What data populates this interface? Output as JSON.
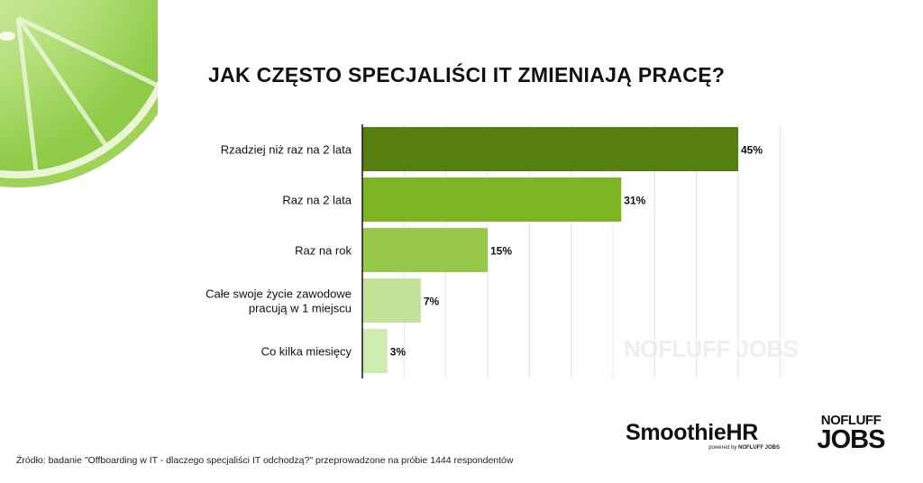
{
  "title": "JAK CZĘSTO SPECJALIŚCI IT ZMIENIAJĄ PRACĘ?",
  "source_note": "Źródło: badanie \"Offboarding w IT - dlaczego specjaliści IT odchodzą?\" przeprowadzone na próbie 1444 respondentów",
  "branding": {
    "smoothie_name": "SmoothieHR",
    "powered_by": "powered by",
    "powered_brand": "NOFLUFF JOBS",
    "logo_line1": "NOFLUFF",
    "logo_line2": "JOBS",
    "watermark": "NOFLUFF JOBS"
  },
  "colors": {
    "bar_1": "#567f10",
    "bar_2": "#7fb424",
    "bar_3": "#97c84a",
    "bar_4": "#c2e29a",
    "bar_5": "#d0ebb2",
    "lime": "#a8d96a",
    "grid": "#e3e3e3"
  },
  "chart_data": {
    "type": "bar",
    "orientation": "horizontal",
    "title": "JAK CZĘSTO SPECJALIŚCI IT ZMIENIAJĄ PRACĘ?",
    "categories": [
      [
        "Rzadziej niż raz na 2 lata"
      ],
      [
        "Raz na 2 lata"
      ],
      [
        "Raz na rok"
      ],
      [
        "Całe swoje życie zawodowe",
        "pracują w 1 miejscu"
      ],
      [
        "Co kilka miesięcy"
      ]
    ],
    "values": [
      45,
      31,
      15,
      7,
      3
    ],
    "value_labels": [
      "45%",
      "31%",
      "15%",
      "7%",
      "3%"
    ],
    "xlim": [
      0,
      50
    ],
    "grid": true,
    "xlabel": "",
    "ylabel": ""
  }
}
